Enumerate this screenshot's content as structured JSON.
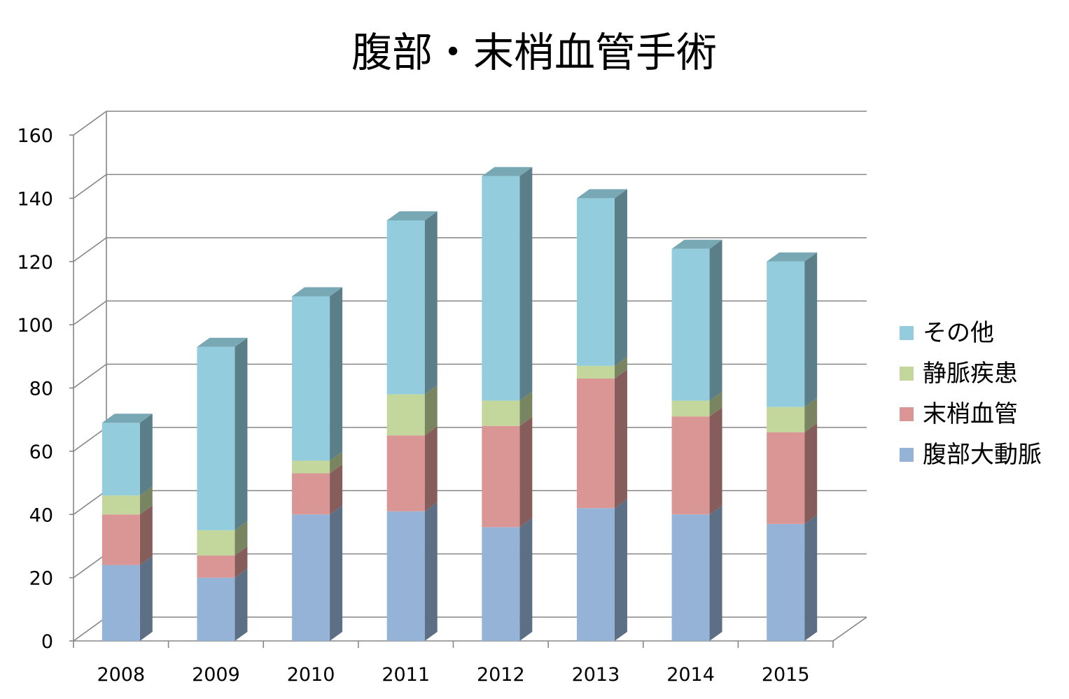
{
  "chart_data": {
    "type": "bar",
    "stacked": true,
    "three_d": true,
    "title": "腹部・末梢血管手術",
    "xlabel": "",
    "ylabel": "",
    "categories": [
      "2008",
      "2009",
      "2010",
      "2011",
      "2012",
      "2013",
      "2014",
      "2015"
    ],
    "y_ticks": [
      "0",
      "20",
      "40",
      "60",
      "80",
      "100",
      "120",
      "140",
      "160"
    ],
    "ylim": [
      0,
      160
    ],
    "grid": true,
    "legend_position": "right",
    "series": [
      {
        "name": "腹部大動脈",
        "color": "#95b3d7",
        "values": [
          24,
          20,
          40,
          41,
          36,
          42,
          40,
          37
        ]
      },
      {
        "name": "末梢血管",
        "color": "#d99694",
        "values": [
          16,
          7,
          13,
          24,
          32,
          41,
          31,
          29
        ]
      },
      {
        "name": "静脈疾患",
        "color": "#c3d69b",
        "values": [
          6,
          8,
          4,
          13,
          8,
          4,
          5,
          8
        ]
      },
      {
        "name": "その他",
        "color": "#93cddd",
        "values": [
          23,
          58,
          52,
          55,
          71,
          53,
          48,
          46
        ]
      }
    ]
  }
}
